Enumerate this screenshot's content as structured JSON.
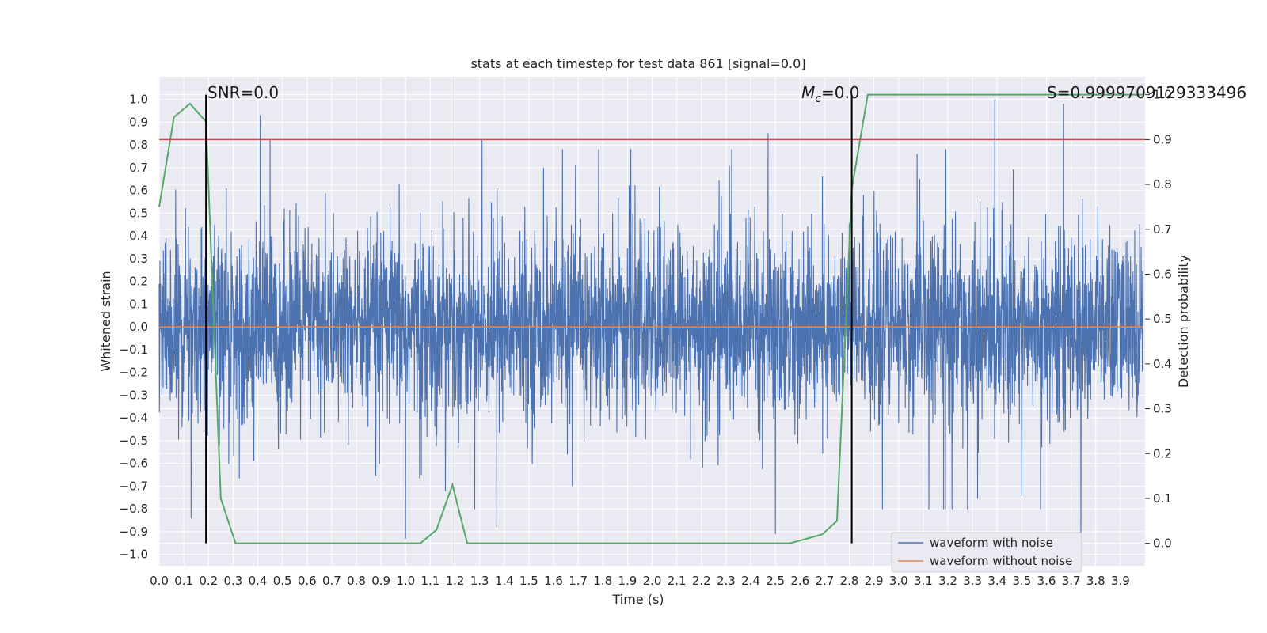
{
  "chart_data": {
    "type": "line",
    "title": "stats at each timestep for test data 861 [signal=0.0]",
    "xlabel": "Time (s)",
    "ylabel": "Whitened strain",
    "y2label": "Detection probability",
    "xlim": [
      0.0,
      4.0
    ],
    "ylim": [
      -1.05,
      1.1
    ],
    "y2lim": [
      -0.05,
      1.04
    ],
    "xticks": [
      "0.0",
      "0.1",
      "0.2",
      "0.3",
      "0.4",
      "0.5",
      "0.6",
      "0.7",
      "0.8",
      "0.9",
      "1.0",
      "1.1",
      "1.2",
      "1.3",
      "1.4",
      "1.5",
      "1.6",
      "1.7",
      "1.8",
      "1.9",
      "2.0",
      "2.1",
      "2.2",
      "2.3",
      "2.4",
      "2.5",
      "2.6",
      "2.7",
      "2.8",
      "2.9",
      "3.0",
      "3.1",
      "3.2",
      "3.3",
      "3.4",
      "3.5",
      "3.6",
      "3.7",
      "3.8",
      "3.9"
    ],
    "yticks": [
      "1.0",
      "0.9",
      "0.8",
      "0.7",
      "0.6",
      "0.5",
      "0.4",
      "0.3",
      "0.2",
      "0.1",
      "0.0",
      "−0.1",
      "−0.2",
      "−0.3",
      "−0.4",
      "−0.5",
      "−0.6",
      "−0.7",
      "−0.8",
      "−0.9",
      "−1.0"
    ],
    "y2ticks": [
      "1.0",
      "0.9",
      "0.8",
      "0.7",
      "0.6",
      "0.5",
      "0.4",
      "0.3",
      "0.2",
      "0.1",
      "0.0"
    ],
    "grid": true,
    "legend_position": "lower-right",
    "legend": [
      "waveform with noise",
      "waveform without noise"
    ],
    "colors": {
      "noise": "#4c72b0",
      "clean": "#dd8452",
      "prob": "#55a868",
      "threshold": "#c44e52",
      "marker": "#000000",
      "background": "#eaeaf2",
      "grid": "#ffffff"
    },
    "series": [
      {
        "name": "waveform with noise",
        "note": "dense noise, approx amplitude range -0.93 to 1.0",
        "sample_count": 4000,
        "spikes": [
          [
            0.41,
            0.93
          ],
          [
            0.45,
            0.82
          ],
          [
            1.31,
            0.82
          ],
          [
            2.47,
            0.85
          ],
          [
            3.39,
            1.0
          ],
          [
            3.67,
            0.98
          ],
          [
            1.0,
            -0.93
          ],
          [
            2.5,
            -0.91
          ],
          [
            3.74,
            -0.94
          ],
          [
            1.37,
            -0.88
          ],
          [
            0.13,
            -0.84
          ]
        ]
      },
      {
        "name": "waveform without noise",
        "x": [
          0.0,
          3.99
        ],
        "y": [
          0.0,
          0.0
        ]
      },
      {
        "name": "detection probability",
        "axis": "right",
        "x": [
          0.0,
          0.06,
          0.125,
          0.19,
          0.25,
          0.31,
          0.375,
          0.44,
          1.0,
          1.06,
          1.125,
          1.19,
          1.25,
          1.31,
          2.5,
          2.56,
          2.625,
          2.69,
          2.75,
          2.81,
          2.875,
          3.99
        ],
        "y": [
          0.75,
          0.95,
          0.98,
          0.94,
          0.1,
          0.0,
          0.0,
          0.0,
          0.0,
          0.0,
          0.03,
          0.13,
          0.0,
          0.0,
          0.0,
          0.0,
          0.01,
          0.02,
          0.05,
          0.79,
          1.0,
          1.0
        ]
      }
    ],
    "threshold_line": {
      "axis": "right",
      "value": 0.9
    },
    "markers": [
      {
        "x": 0.19,
        "ymin": 0.0,
        "ymax": 1.0,
        "axis": "right"
      },
      {
        "x": 2.81,
        "ymin": 0.0,
        "ymax": 1.0,
        "axis": "right"
      }
    ],
    "annotations": {
      "snr": "SNR=0.0",
      "mc_symbol": "M",
      "mc_sub": "c",
      "mc_value": "=0.0",
      "s": "S=0.9999709129333496"
    }
  }
}
